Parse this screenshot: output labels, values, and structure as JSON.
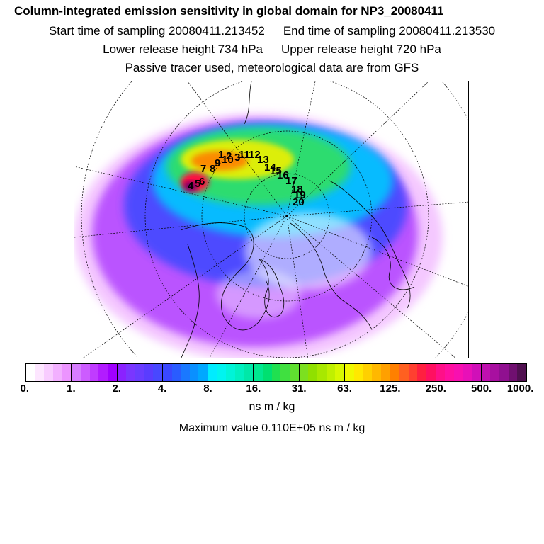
{
  "header": {
    "title": "Column-integrated emission sensitivity in global domain for NP3_20080411",
    "start_sampling": "Start time of sampling 20080411.213452",
    "end_sampling": "End time of sampling 20080411.213530",
    "lower_release": "Lower release height  734 hPa",
    "upper_release": "Upper release height  720 hPa",
    "passive_note": "Passive tracer used, meteorological data are from GFS"
  },
  "map": {
    "track_labels": [
      "1",
      "2",
      "3",
      "4",
      "5",
      "6",
      "7",
      "8",
      "9",
      "10",
      "11",
      "12",
      "13",
      "14",
      "15",
      "16",
      "17",
      "18",
      "19",
      "20"
    ]
  },
  "colorbar": {
    "tick_labels": [
      "0.",
      "1.",
      "2.",
      "4.",
      "8.",
      "16.",
      "31.",
      "63.",
      "125.",
      "250.",
      "500.",
      "1000."
    ],
    "colors": [
      "#ffffff",
      "#fde6ff",
      "#f8ccff",
      "#f2b0ff",
      "#ec94ff",
      "#d77dff",
      "#cc5cff",
      "#c03cff",
      "#b21cff",
      "#a000ff",
      "#8a22ff",
      "#7a36ff",
      "#6a3cff",
      "#5a3cff",
      "#4848ff",
      "#3a48ff",
      "#2a5cff",
      "#1a78ff",
      "#0a90ff",
      "#00a8ff",
      "#00ecff",
      "#00f4f0",
      "#00f4d8",
      "#00f0c0",
      "#00e8a8",
      "#00e890",
      "#00e070",
      "#20e050",
      "#40e040",
      "#60e030",
      "#7ce020",
      "#90e000",
      "#a8e800",
      "#c0f000",
      "#d8f800",
      "#f0f800",
      "#ffe800",
      "#ffd000",
      "#ffb800",
      "#ffa000",
      "#ff8000",
      "#ff6020",
      "#ff4030",
      "#ff2040",
      "#ff1060",
      "#ff1088",
      "#ff10a0",
      "#f810b0",
      "#e810b8",
      "#d010b8",
      "#c010b0",
      "#a810a0",
      "#901090",
      "#701070",
      "#501050"
    ]
  },
  "units": "ns m / kg",
  "max_value": "Maximum value  0.110E+05 ns m / kg"
}
